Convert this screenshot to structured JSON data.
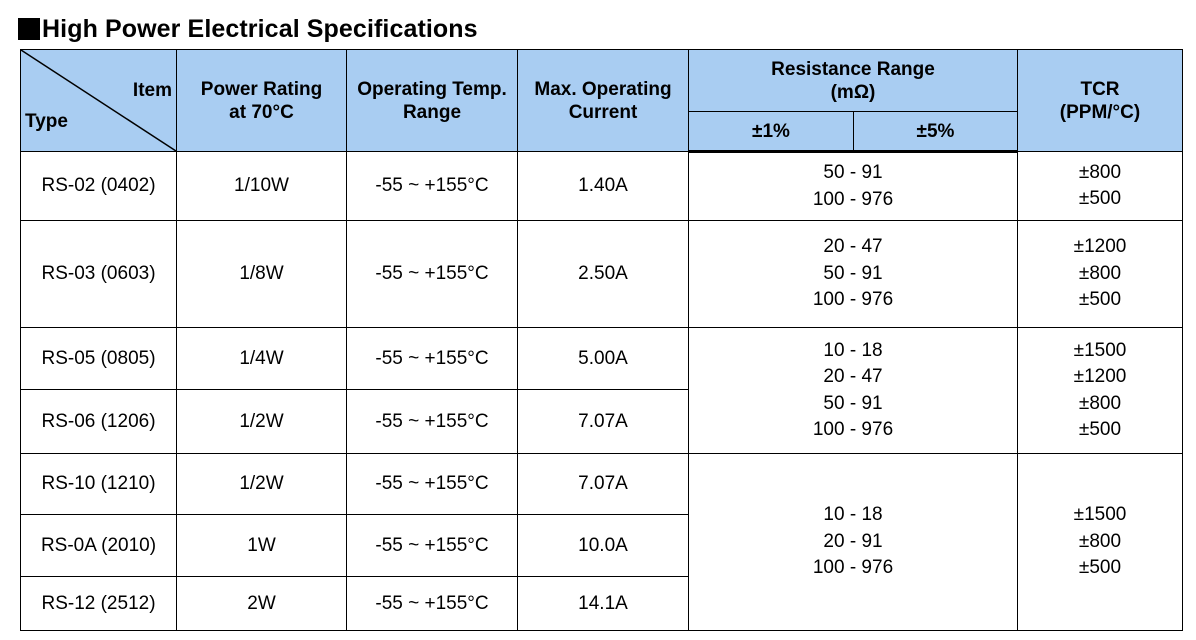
{
  "title": "High Power Electrical Specifications",
  "header": {
    "item": "Item",
    "type": "Type",
    "power_rating": [
      "Power Rating",
      "at 70°C"
    ],
    "operating_temp": [
      "Operating Temp.",
      "Range"
    ],
    "max_current": [
      "Max. Operating",
      "Current"
    ],
    "resistance_range": [
      "Resistance Range",
      "(mΩ)"
    ],
    "tol_1": "±1%",
    "tol_5": "±5%",
    "tcr": [
      "TCR",
      "(PPM/°C)"
    ]
  },
  "rows": [
    {
      "type": "RS-02 (0402)",
      "power": "1/10W",
      "temp": "-55 ~ +155°C",
      "current": "1.40A"
    },
    {
      "type": "RS-03 (0603)",
      "power": "1/8W",
      "temp": "-55 ~ +155°C",
      "current": "2.50A"
    },
    {
      "type": "RS-05 (0805)",
      "power": "1/4W",
      "temp": "-55 ~ +155°C",
      "current": "5.00A"
    },
    {
      "type": "RS-06 (1206)",
      "power": "1/2W",
      "temp": "-55 ~ +155°C",
      "current": "7.07A"
    },
    {
      "type": "RS-10 (1210)",
      "power": "1/2W",
      "temp": "-55 ~ +155°C",
      "current": "7.07A"
    },
    {
      "type": "RS-0A (2010)",
      "power": "1W",
      "temp": "-55 ~ +155°C",
      "current": "10.0A"
    },
    {
      "type": "RS-12 (2512)",
      "power": "2W",
      "temp": "-55 ~ +155°C",
      "current": "14.1A"
    }
  ],
  "groups": [
    {
      "resistance": [
        "50 - 91",
        "100 - 976"
      ],
      "tcr": [
        "±800",
        "±500"
      ]
    },
    {
      "resistance": [
        "20 - 47",
        "50 - 91",
        "100 - 976"
      ],
      "tcr": [
        "±1200",
        "±800",
        "±500"
      ]
    },
    {
      "resistance": [
        "10 - 18",
        "20 - 47",
        "50 - 91",
        "100 - 976"
      ],
      "tcr": [
        "±1500",
        "±1200",
        "±800",
        "±500"
      ]
    },
    {
      "resistance": [
        "10 - 18",
        "20 - 91",
        "100 - 976"
      ],
      "tcr": [
        "±1500",
        "±800",
        "±500"
      ]
    }
  ]
}
